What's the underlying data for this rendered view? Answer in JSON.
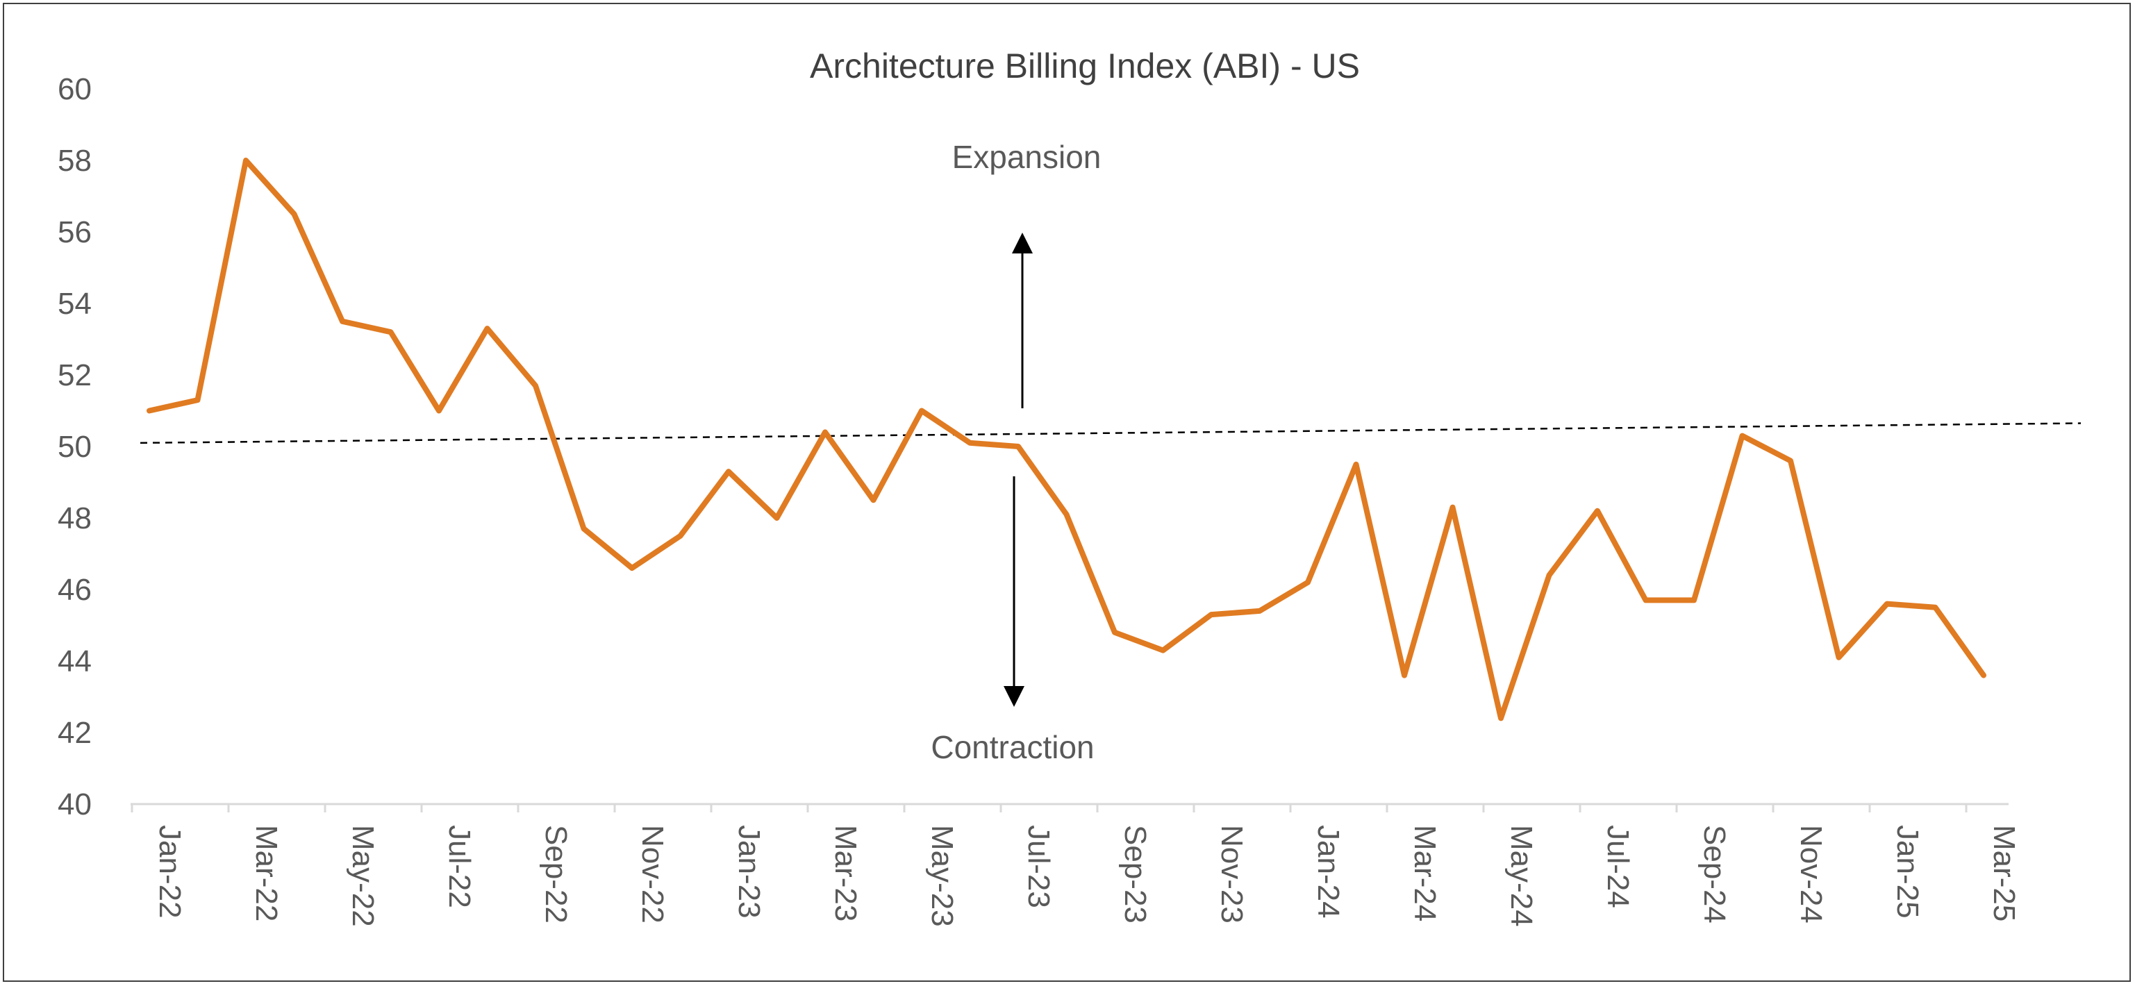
{
  "chart_data": {
    "type": "line",
    "title": "Architecture Billing Index (ABI) - US",
    "xlabel": "",
    "ylabel": "",
    "ylim": [
      40,
      60
    ],
    "yticks": [
      40,
      42,
      44,
      46,
      48,
      50,
      52,
      54,
      56,
      58,
      60
    ],
    "grid": false,
    "categories": [
      "Jan-22",
      "Feb-22",
      "Mar-22",
      "Apr-22",
      "May-22",
      "Jun-22",
      "Jul-22",
      "Aug-22",
      "Sep-22",
      "Oct-22",
      "Nov-22",
      "Dec-22",
      "Jan-23",
      "Feb-23",
      "Mar-23",
      "Apr-23",
      "May-23",
      "Jun-23",
      "Jul-23",
      "Aug-23",
      "Sep-23",
      "Oct-23",
      "Nov-23",
      "Dec-23",
      "Jan-24",
      "Feb-24",
      "Mar-24",
      "Apr-24",
      "May-24",
      "Jun-24",
      "Jul-24",
      "Aug-24",
      "Sep-24",
      "Oct-24",
      "Nov-24",
      "Dec-24",
      "Jan-25",
      "Feb-25",
      "Mar-25"
    ],
    "xtick_labels": [
      "Jan-22",
      "Mar-22",
      "May-22",
      "Jul-22",
      "Sep-22",
      "Nov-22",
      "Jan-23",
      "Mar-23",
      "May-23",
      "Jul-23",
      "Sep-23",
      "Nov-23",
      "Jan-24",
      "Mar-24",
      "May-24",
      "Jul-24",
      "Sep-24",
      "Nov-24",
      "Jan-25",
      "Mar-25"
    ],
    "series": [
      {
        "name": "ABI",
        "color": "#e07b22",
        "values": [
          51.0,
          51.3,
          58.0,
          56.5,
          53.5,
          53.2,
          51.0,
          53.3,
          51.7,
          47.7,
          46.6,
          47.5,
          49.3,
          48.0,
          50.4,
          48.5,
          51.0,
          50.1,
          50.0,
          48.1,
          44.8,
          44.3,
          45.3,
          45.4,
          46.2,
          49.5,
          43.6,
          48.3,
          42.4,
          46.4,
          48.2,
          45.7,
          45.7,
          50.3,
          49.6,
          44.1,
          45.6,
          45.5,
          43.6
        ]
      }
    ],
    "reference_line": {
      "name": "trend",
      "style": "dashed",
      "color": "#000000",
      "start_value": 50.1,
      "end_value": 50.65
    },
    "annotations": {
      "expansion": "Expansion",
      "contraction": "Contraction"
    }
  }
}
